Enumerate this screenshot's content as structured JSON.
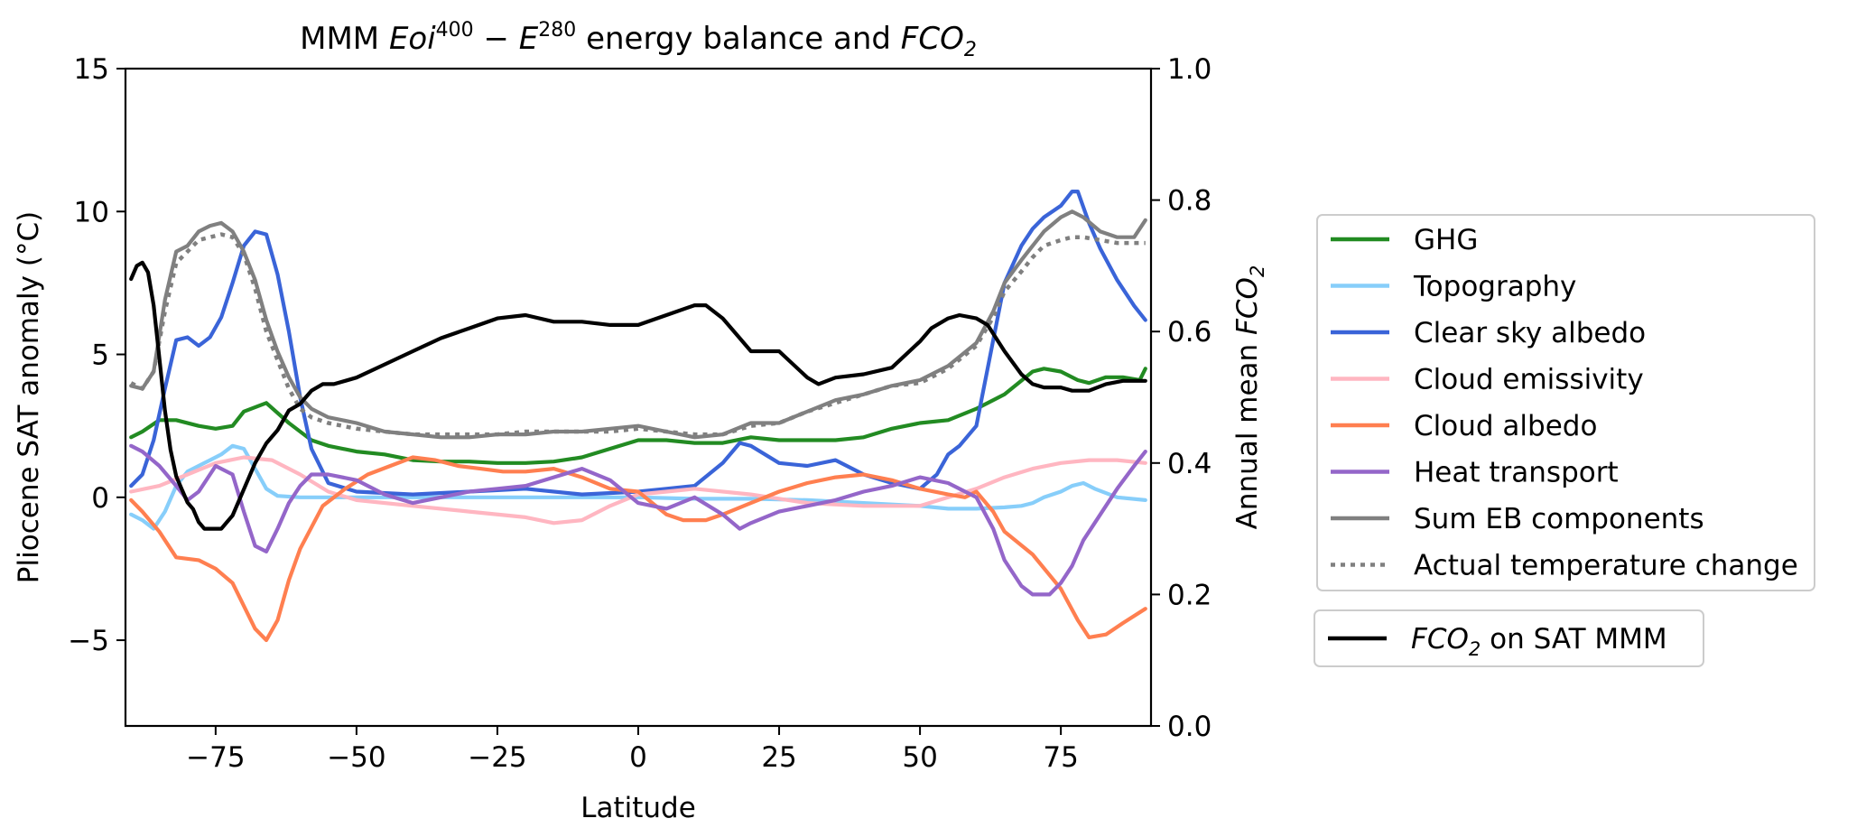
{
  "chart_data": {
    "type": "line",
    "title": {
      "prefix": "MMM ",
      "term1": "Eoi",
      "term1_sup": "400",
      "minus": " − ",
      "term2": "E",
      "term2_sup": "280",
      "middle": " energy balance and ",
      "fco2": "FCO",
      "fco2_sub": "2"
    },
    "xlabel": "Latitude",
    "ylabel": "Pliocene SAT anomaly (°C)",
    "y2label": {
      "prefix": "Annual mean ",
      "fco2": "FCO",
      "fco2_sub": "2"
    },
    "xlim": [
      -91,
      91
    ],
    "ylim": [
      -8,
      15
    ],
    "y2lim": [
      0.0,
      1.0
    ],
    "xticks": [
      -75,
      -50,
      -25,
      0,
      25,
      50,
      75
    ],
    "xtick_labels": [
      "−75",
      "−50",
      "−25",
      "0",
      "25",
      "50",
      "75"
    ],
    "yticks": [
      -5,
      0,
      5,
      10,
      15
    ],
    "ytick_labels": [
      "−5",
      "0",
      "5",
      "10",
      "15"
    ],
    "y2ticks": [
      0.0,
      0.2,
      0.4,
      0.6,
      0.8,
      1.0
    ],
    "y2tick_labels": [
      "0.0",
      "0.2",
      "0.4",
      "0.6",
      "0.8",
      "1.0"
    ],
    "grid": false,
    "legend_position": "right, outside plot area",
    "series": [
      {
        "name": "GHG",
        "color": "#228b22",
        "style": "solid",
        "axis": "left",
        "x": [
          -90,
          -88,
          -85,
          -82,
          -78,
          -75,
          -72,
          -70,
          -66,
          -62,
          -58,
          -55,
          -50,
          -45,
          -40,
          -35,
          -30,
          -25,
          -20,
          -15,
          -10,
          -5,
          0,
          5,
          10,
          15,
          20,
          25,
          30,
          35,
          40,
          45,
          50,
          55,
          60,
          65,
          70,
          72,
          75,
          78,
          80,
          83,
          86,
          89,
          90
        ],
        "y": [
          2.1,
          2.3,
          2.7,
          2.7,
          2.5,
          2.4,
          2.5,
          3.0,
          3.3,
          2.6,
          2.0,
          1.8,
          1.6,
          1.5,
          1.3,
          1.25,
          1.25,
          1.2,
          1.2,
          1.25,
          1.4,
          1.7,
          2.0,
          2.0,
          1.9,
          1.9,
          2.1,
          2.0,
          2.0,
          2.0,
          2.1,
          2.4,
          2.6,
          2.7,
          3.1,
          3.6,
          4.4,
          4.5,
          4.4,
          4.1,
          4.0,
          4.2,
          4.2,
          4.1,
          4.5
        ]
      },
      {
        "name": "Topography",
        "color": "#87cefa",
        "style": "solid",
        "axis": "left",
        "x": [
          -90,
          -88,
          -86,
          -84,
          -82,
          -80,
          -77,
          -74,
          -72,
          -70,
          -68,
          -66,
          -64,
          -60,
          -55,
          -50,
          -40,
          -30,
          -20,
          -10,
          0,
          10,
          20,
          30,
          40,
          50,
          55,
          60,
          65,
          68,
          70,
          72,
          75,
          77,
          79,
          81,
          85,
          90
        ],
        "y": [
          -0.6,
          -0.8,
          -1.1,
          -0.5,
          0.4,
          0.9,
          1.2,
          1.5,
          1.8,
          1.7,
          1.0,
          0.3,
          0.05,
          0,
          0,
          0,
          0,
          0,
          0,
          0,
          0,
          -0.05,
          -0.05,
          -0.1,
          -0.2,
          -0.3,
          -0.4,
          -0.4,
          -0.35,
          -0.3,
          -0.2,
          0.0,
          0.2,
          0.4,
          0.5,
          0.3,
          0.0,
          -0.1
        ]
      },
      {
        "name": "Clear sky albedo",
        "color": "#3a64d8",
        "style": "solid",
        "axis": "left",
        "x": [
          -90,
          -88,
          -86,
          -84,
          -82,
          -80,
          -78,
          -76,
          -74,
          -72,
          -70,
          -68,
          -66,
          -64,
          -62,
          -60,
          -58,
          -55,
          -50,
          -40,
          -30,
          -20,
          -10,
          0,
          5,
          10,
          15,
          18,
          20,
          25,
          30,
          35,
          40,
          45,
          50,
          53,
          55,
          57,
          60,
          63,
          65,
          68,
          70,
          72,
          75,
          77,
          78,
          80,
          82,
          85,
          88,
          90
        ],
        "y": [
          0.4,
          0.8,
          2.0,
          3.8,
          5.5,
          5.6,
          5.3,
          5.6,
          6.3,
          7.5,
          8.8,
          9.3,
          9.2,
          7.8,
          5.8,
          3.5,
          1.7,
          0.5,
          0.2,
          0.1,
          0.2,
          0.3,
          0.1,
          0.2,
          0.3,
          0.4,
          1.2,
          1.9,
          1.8,
          1.2,
          1.1,
          1.3,
          0.8,
          0.5,
          0.3,
          0.8,
          1.5,
          1.8,
          2.5,
          5.5,
          7.5,
          8.8,
          9.4,
          9.8,
          10.2,
          10.7,
          10.7,
          9.6,
          8.7,
          7.6,
          6.7,
          6.2
        ]
      },
      {
        "name": "Cloud emissivity",
        "color": "#ffb6c1",
        "style": "solid",
        "axis": "left",
        "x": [
          -90,
          -85,
          -80,
          -75,
          -70,
          -65,
          -60,
          -55,
          -50,
          -40,
          -30,
          -20,
          -15,
          -10,
          -5,
          0,
          5,
          10,
          20,
          30,
          40,
          50,
          55,
          60,
          65,
          70,
          75,
          80,
          85,
          90
        ],
        "y": [
          0.2,
          0.4,
          0.8,
          1.2,
          1.4,
          1.3,
          0.8,
          0.2,
          -0.1,
          -0.3,
          -0.5,
          -0.7,
          -0.9,
          -0.8,
          -0.3,
          0.1,
          0.2,
          0.3,
          0.1,
          -0.2,
          -0.3,
          -0.3,
          0.0,
          0.3,
          0.7,
          1.0,
          1.2,
          1.3,
          1.3,
          1.2
        ]
      },
      {
        "name": "Cloud albedo",
        "color": "#ff7f50",
        "style": "solid",
        "axis": "left",
        "x": [
          -90,
          -88,
          -85,
          -82,
          -78,
          -75,
          -72,
          -70,
          -68,
          -66,
          -64,
          -62,
          -60,
          -56,
          -52,
          -48,
          -44,
          -40,
          -36,
          -32,
          -28,
          -24,
          -20,
          -15,
          -10,
          -5,
          0,
          5,
          8,
          12,
          15,
          20,
          25,
          30,
          35,
          40,
          45,
          50,
          55,
          58,
          60,
          63,
          65,
          70,
          75,
          78,
          80,
          83,
          86,
          90
        ],
        "y": [
          -0.1,
          -0.5,
          -1.2,
          -2.1,
          -2.2,
          -2.5,
          -3.0,
          -3.8,
          -4.6,
          -5.0,
          -4.3,
          -2.9,
          -1.8,
          -0.3,
          0.3,
          0.8,
          1.1,
          1.4,
          1.3,
          1.1,
          1.0,
          0.9,
          0.9,
          1.0,
          0.7,
          0.3,
          0.2,
          -0.6,
          -0.8,
          -0.8,
          -0.6,
          -0.2,
          0.2,
          0.5,
          0.7,
          0.8,
          0.6,
          0.3,
          0.1,
          0.0,
          0.2,
          -0.5,
          -1.2,
          -2.0,
          -3.2,
          -4.3,
          -4.9,
          -4.8,
          -4.4,
          -3.9
        ]
      },
      {
        "name": "Heat transport",
        "color": "#9466c9",
        "style": "solid",
        "axis": "left",
        "x": [
          -90,
          -88,
          -85,
          -82,
          -80,
          -78,
          -75,
          -72,
          -70,
          -68,
          -66,
          -64,
          -62,
          -60,
          -58,
          -55,
          -50,
          -45,
          -40,
          -35,
          -30,
          -25,
          -20,
          -15,
          -10,
          -5,
          0,
          5,
          10,
          15,
          18,
          20,
          25,
          30,
          35,
          40,
          45,
          50,
          55,
          60,
          63,
          65,
          68,
          70,
          73,
          75,
          77,
          79,
          82,
          85,
          88,
          90
        ],
        "y": [
          1.8,
          1.6,
          1.1,
          0.4,
          -0.1,
          0.2,
          1.1,
          0.8,
          -0.5,
          -1.7,
          -1.9,
          -1.1,
          -0.2,
          0.4,
          0.8,
          0.8,
          0.6,
          0.1,
          -0.2,
          0.0,
          0.2,
          0.3,
          0.4,
          0.7,
          1.0,
          0.6,
          -0.2,
          -0.4,
          0.0,
          -0.6,
          -1.1,
          -0.9,
          -0.5,
          -0.3,
          -0.1,
          0.2,
          0.4,
          0.7,
          0.5,
          0.0,
          -1.1,
          -2.2,
          -3.1,
          -3.4,
          -3.4,
          -3.0,
          -2.4,
          -1.5,
          -0.6,
          0.3,
          1.1,
          1.6
        ]
      },
      {
        "name": "Sum EB components",
        "color": "#808080",
        "style": "solid",
        "axis": "left",
        "x": [
          -90,
          -88,
          -86,
          -84,
          -82,
          -80,
          -78,
          -76,
          -74,
          -72,
          -70,
          -68,
          -66,
          -64,
          -62,
          -60,
          -58,
          -55,
          -50,
          -45,
          -40,
          -35,
          -30,
          -25,
          -20,
          -15,
          -10,
          -5,
          0,
          5,
          10,
          15,
          20,
          25,
          30,
          35,
          40,
          45,
          50,
          55,
          60,
          63,
          65,
          68,
          70,
          72,
          75,
          77,
          79,
          82,
          85,
          88,
          90
        ],
        "y": [
          3.9,
          3.8,
          4.4,
          6.9,
          8.6,
          8.8,
          9.3,
          9.5,
          9.6,
          9.3,
          8.6,
          7.6,
          6.2,
          5.1,
          4.2,
          3.5,
          3.1,
          2.8,
          2.6,
          2.3,
          2.2,
          2.1,
          2.1,
          2.2,
          2.2,
          2.3,
          2.3,
          2.4,
          2.5,
          2.3,
          2.1,
          2.2,
          2.6,
          2.6,
          3.0,
          3.4,
          3.6,
          3.9,
          4.1,
          4.6,
          5.4,
          6.5,
          7.5,
          8.3,
          8.8,
          9.3,
          9.8,
          10.0,
          9.8,
          9.3,
          9.1,
          9.1,
          9.7
        ]
      },
      {
        "name": "Actual temperature change",
        "color": "#808080",
        "style": "dotted",
        "axis": "left",
        "x": [
          -90,
          -88,
          -86,
          -84,
          -82,
          -80,
          -78,
          -76,
          -74,
          -72,
          -70,
          -68,
          -66,
          -64,
          -62,
          -60,
          -58,
          -55,
          -50,
          -45,
          -40,
          -35,
          -30,
          -25,
          -20,
          -15,
          -10,
          -5,
          0,
          5,
          10,
          15,
          20,
          25,
          30,
          35,
          40,
          45,
          50,
          55,
          60,
          63,
          65,
          68,
          70,
          72,
          75,
          77,
          79,
          82,
          85,
          88,
          90
        ],
        "y": [
          4.0,
          3.8,
          4.4,
          6.5,
          8.2,
          8.6,
          9.0,
          9.1,
          9.2,
          9.1,
          8.5,
          7.3,
          5.8,
          4.8,
          3.8,
          3.1,
          2.8,
          2.6,
          2.4,
          2.3,
          2.2,
          2.2,
          2.2,
          2.2,
          2.3,
          2.3,
          2.3,
          2.3,
          2.4,
          2.3,
          2.2,
          2.2,
          2.5,
          2.6,
          3.0,
          3.3,
          3.6,
          3.9,
          4.0,
          4.5,
          5.3,
          6.3,
          7.2,
          7.9,
          8.4,
          8.8,
          9.0,
          9.1,
          9.1,
          9.0,
          8.9,
          8.9,
          8.9
        ]
      },
      {
        "name": "FCO2 on SAT MMM",
        "color": "#000000",
        "style": "solid",
        "axis": "right",
        "x": [
          -90,
          -89,
          -88,
          -87,
          -86,
          -85,
          -84,
          -83,
          -82,
          -81,
          -80,
          -79,
          -78,
          -77,
          -76,
          -74,
          -72,
          -70,
          -68,
          -66,
          -64,
          -62,
          -60,
          -58,
          -56,
          -54,
          -52,
          -50,
          -45,
          -40,
          -35,
          -30,
          -25,
          -20,
          -15,
          -10,
          -5,
          0,
          5,
          10,
          12,
          15,
          18,
          20,
          25,
          30,
          32,
          35,
          40,
          45,
          50,
          52,
          55,
          57,
          60,
          62,
          65,
          68,
          70,
          72,
          75,
          77,
          80,
          83,
          86,
          88,
          90
        ],
        "y": [
          0.68,
          0.7,
          0.705,
          0.69,
          0.64,
          0.56,
          0.48,
          0.42,
          0.38,
          0.36,
          0.34,
          0.33,
          0.31,
          0.3,
          0.3,
          0.3,
          0.32,
          0.36,
          0.4,
          0.43,
          0.45,
          0.48,
          0.49,
          0.51,
          0.52,
          0.52,
          0.525,
          0.53,
          0.55,
          0.57,
          0.59,
          0.605,
          0.62,
          0.625,
          0.615,
          0.615,
          0.61,
          0.61,
          0.625,
          0.64,
          0.64,
          0.62,
          0.59,
          0.57,
          0.57,
          0.53,
          0.52,
          0.53,
          0.535,
          0.545,
          0.585,
          0.605,
          0.62,
          0.625,
          0.62,
          0.61,
          0.57,
          0.535,
          0.52,
          0.515,
          0.515,
          0.51,
          0.51,
          0.52,
          0.525,
          0.525,
          0.525
        ]
      }
    ],
    "legend_main": [
      "GHG",
      "Topography",
      "Clear sky albedo",
      "Cloud emissivity",
      "Cloud albedo",
      "Heat transport",
      "Sum EB components",
      "Actual temperature change"
    ],
    "legend_secondary": {
      "fco2": "FCO",
      "fco2_sub": "2",
      "suffix": " on SAT MMM"
    }
  }
}
